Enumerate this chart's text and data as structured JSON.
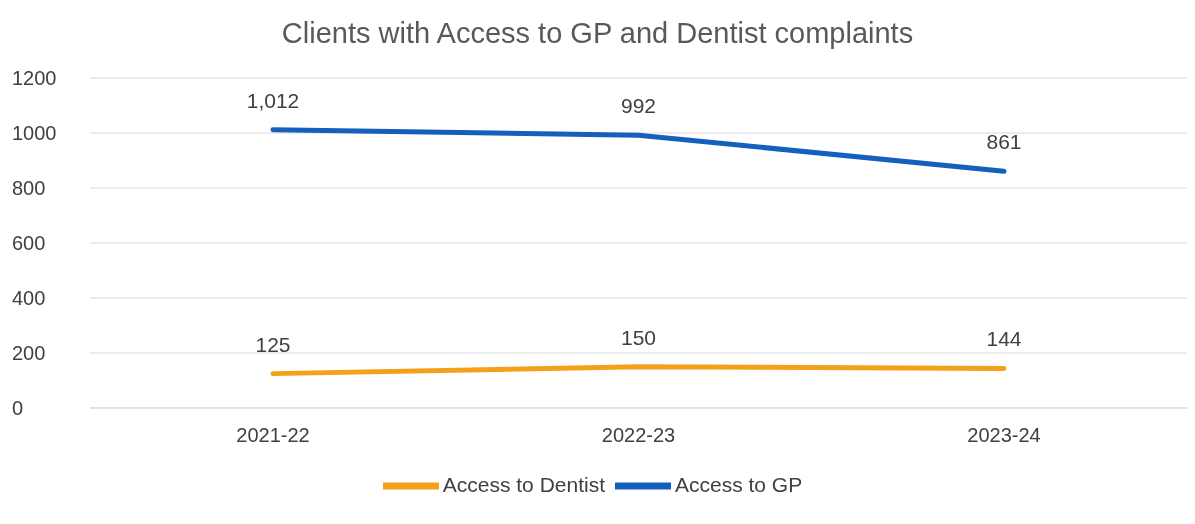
{
  "chart_data": {
    "type": "line",
    "title": "Clients with Access to GP and Dentist complaints",
    "categories": [
      "2021-22",
      "2022-23",
      "2023-24"
    ],
    "series": [
      {
        "name": "Access to GP",
        "color": "#1560bd",
        "values": [
          1012,
          992,
          861
        ],
        "value_labels": [
          "1,012",
          "992",
          "861"
        ]
      },
      {
        "name": "Access to Dentist",
        "color": "#f5a01a",
        "values": [
          125,
          150,
          144
        ],
        "value_labels": [
          "125",
          "150",
          "144"
        ]
      }
    ],
    "ylim": [
      0,
      1200
    ],
    "yticks": [
      0,
      200,
      400,
      600,
      800,
      1000,
      1200
    ],
    "grid": "y",
    "legend": "bottom",
    "marker": "none",
    "line_style": "solid"
  }
}
